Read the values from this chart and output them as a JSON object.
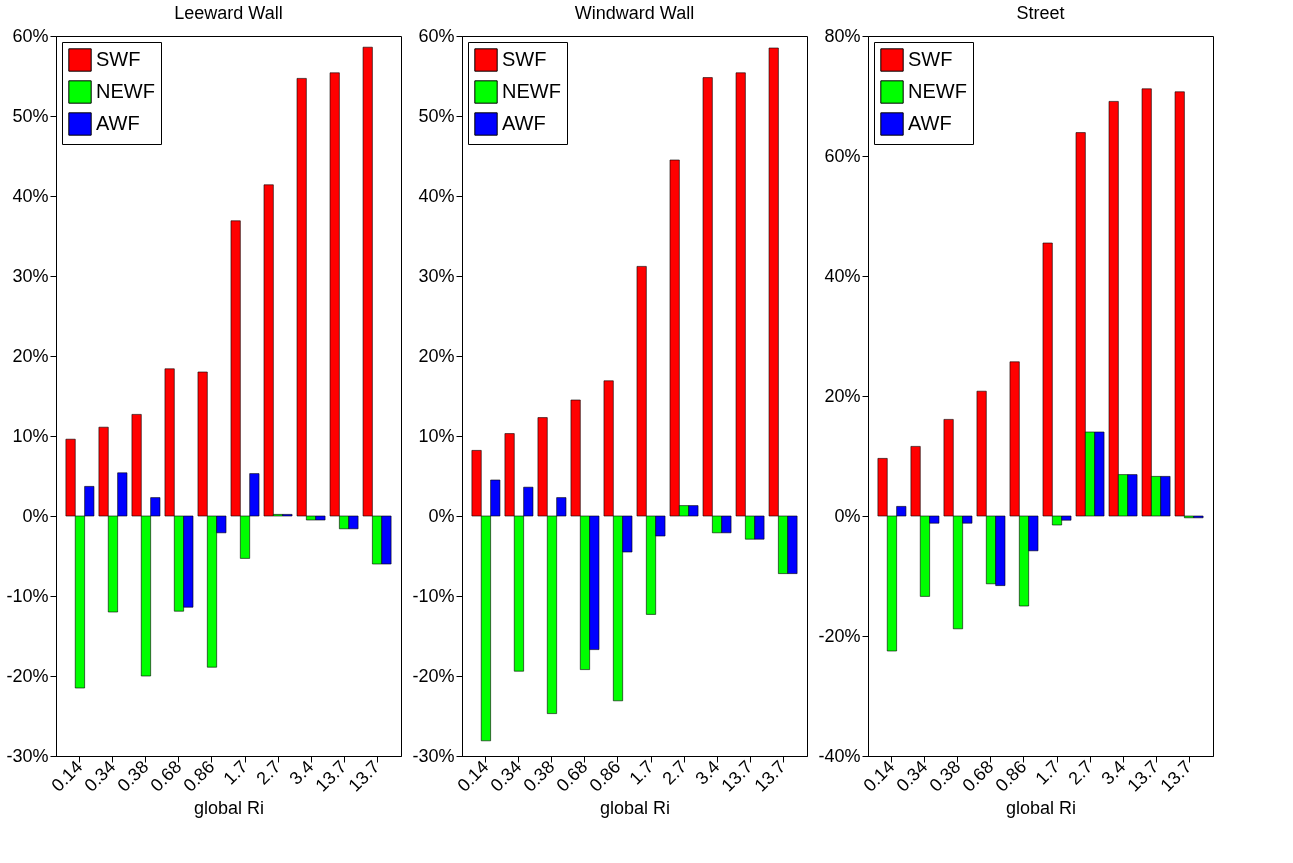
{
  "chart_data": [
    {
      "type": "bar",
      "title": "Leeward Wall",
      "xlabel": "global Ri",
      "categories": [
        "0.14",
        "0.34",
        "0.38",
        "0.68",
        "0.86",
        "1.7",
        "2.7",
        "3.4",
        "13.7",
        "13.7"
      ],
      "series": [
        {
          "name": "SWF",
          "color": "#ff0000",
          "values": [
            9.6,
            11.1,
            12.7,
            18.4,
            18.0,
            36.9,
            41.4,
            54.7,
            55.4,
            58.6
          ]
        },
        {
          "name": "NEWF",
          "color": "#00ff00",
          "values": [
            -21.5,
            -12.0,
            -20.0,
            -11.9,
            -18.9,
            -5.3,
            0.2,
            -0.5,
            -1.6,
            -6.0
          ]
        },
        {
          "name": "AWF",
          "color": "#0000ff",
          "values": [
            3.7,
            5.4,
            2.3,
            -11.4,
            -2.1,
            5.3,
            0.2,
            -0.5,
            -1.6,
            -6.0
          ]
        }
      ],
      "ylim": [
        -30,
        60
      ],
      "yticks": [
        {
          "value": -30,
          "label": "-30%"
        },
        {
          "value": -20,
          "label": "-20%"
        },
        {
          "value": -10,
          "label": "-10%"
        },
        {
          "value": 0,
          "label": "0%"
        },
        {
          "value": 10,
          "label": "10%"
        },
        {
          "value": 20,
          "label": "20%"
        },
        {
          "value": 30,
          "label": "30%"
        },
        {
          "value": 40,
          "label": "40%"
        },
        {
          "value": 50,
          "label": "50%"
        },
        {
          "value": 60,
          "label": "60%"
        }
      ],
      "legend": "top left",
      "grid": false
    },
    {
      "type": "bar",
      "title": "Windward Wall",
      "xlabel": "global Ri",
      "categories": [
        "0.14",
        "0.34",
        "0.38",
        "0.68",
        "0.86",
        "1.7",
        "2.7",
        "3.4",
        "13.7",
        "13.7"
      ],
      "series": [
        {
          "name": "SWF",
          "color": "#ff0000",
          "values": [
            8.2,
            10.3,
            12.3,
            14.5,
            16.9,
            31.2,
            44.5,
            54.8,
            55.4,
            58.5
          ]
        },
        {
          "name": "NEWF",
          "color": "#00ff00",
          "values": [
            -28.1,
            -19.4,
            -24.7,
            -19.2,
            -23.1,
            -12.3,
            1.3,
            -2.1,
            -2.9,
            -7.2
          ]
        },
        {
          "name": "AWF",
          "color": "#0000ff",
          "values": [
            4.5,
            3.6,
            2.3,
            -16.7,
            -4.5,
            -2.5,
            1.3,
            -2.1,
            -2.9,
            -7.2
          ]
        }
      ],
      "ylim": [
        -30,
        60
      ],
      "yticks": [
        {
          "value": -30,
          "label": "-30%"
        },
        {
          "value": -20,
          "label": "-20%"
        },
        {
          "value": -10,
          "label": "-10%"
        },
        {
          "value": 0,
          "label": "0%"
        },
        {
          "value": 10,
          "label": "10%"
        },
        {
          "value": 20,
          "label": "20%"
        },
        {
          "value": 30,
          "label": "30%"
        },
        {
          "value": 40,
          "label": "40%"
        },
        {
          "value": 50,
          "label": "50%"
        },
        {
          "value": 60,
          "label": "60%"
        }
      ],
      "legend": "top left",
      "grid": false
    },
    {
      "type": "bar",
      "title": "Street",
      "xlabel": "global Ri",
      "categories": [
        "0.14",
        "0.34",
        "0.38",
        "0.68",
        "0.86",
        "1.7",
        "2.7",
        "3.4",
        "13.7",
        "13.7"
      ],
      "series": [
        {
          "name": "SWF",
          "color": "#ff0000",
          "values": [
            9.6,
            11.6,
            16.1,
            20.8,
            25.7,
            45.5,
            63.9,
            69.1,
            71.2,
            70.7
          ]
        },
        {
          "name": "NEWF",
          "color": "#00ff00",
          "values": [
            -22.5,
            -13.4,
            -18.8,
            -11.3,
            -15.0,
            -1.5,
            14.0,
            6.9,
            6.6,
            -0.3
          ]
        },
        {
          "name": "AWF",
          "color": "#0000ff",
          "values": [
            1.6,
            -1.2,
            -1.2,
            -11.6,
            -5.8,
            -0.7,
            14.0,
            6.9,
            6.6,
            -0.3
          ]
        }
      ],
      "ylim": [
        -40,
        80
      ],
      "yticks": [
        {
          "value": -40,
          "label": "-40%"
        },
        {
          "value": -20,
          "label": "-20%"
        },
        {
          "value": 0,
          "label": "0%"
        },
        {
          "value": 20,
          "label": "20%"
        },
        {
          "value": 40,
          "label": "40%"
        },
        {
          "value": 60,
          "label": "60%"
        },
        {
          "value": 80,
          "label": "80%"
        }
      ],
      "legend": "top left",
      "grid": false
    }
  ]
}
